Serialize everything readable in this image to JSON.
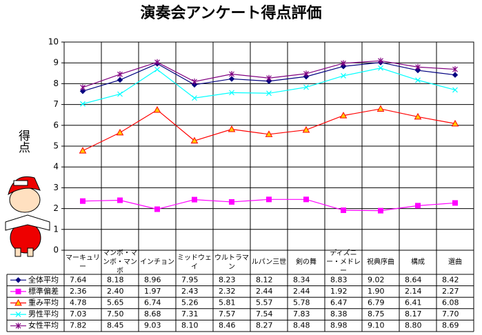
{
  "chart_data": {
    "type": "line",
    "title": "演奏会アンケート得点評価",
    "y_label": "得点",
    "categories": [
      "マーキュリー",
      "マンボ・マンボ・マンボ",
      "インチョン",
      "ミッドウェイ",
      "ウルトラマン",
      "ルパン三世",
      "剣の舞",
      "ディズニー・メドレー",
      "祝典序曲",
      "構成",
      "選曲"
    ],
    "ylim": [
      0,
      10
    ],
    "yticks": [
      0,
      1,
      2,
      3,
      4,
      5,
      6,
      7,
      8,
      9,
      10
    ],
    "grid": true,
    "series": [
      {
        "name": "全体平均",
        "color": "#000080",
        "marker": "diamond",
        "values": [
          7.64,
          8.18,
          8.96,
          7.95,
          8.23,
          8.12,
          8.34,
          8.83,
          9.02,
          8.64,
          8.42
        ],
        "value_labels": [
          "7.64",
          "8.18",
          "8.96",
          "7.95",
          "8.23",
          "8.12",
          "8.34",
          "8.83",
          "9.02",
          "8.64",
          "8.42"
        ]
      },
      {
        "name": "標準偏差",
        "color": "#ff00ff",
        "marker": "square",
        "values": [
          2.36,
          2.4,
          1.97,
          2.43,
          2.32,
          2.44,
          2.44,
          1.92,
          1.9,
          2.14,
          2.27
        ],
        "value_labels": [
          "2.36",
          "2.40",
          "1.97",
          "2.43",
          "2.32",
          "2.44",
          "2.44",
          "1.92",
          "1.90",
          "2.14",
          "2.27"
        ]
      },
      {
        "name": "重み平均",
        "color": "#ff0000",
        "marker": "triangle",
        "values": [
          4.78,
          5.65,
          6.74,
          5.26,
          5.81,
          5.57,
          5.78,
          6.47,
          6.79,
          6.41,
          6.08
        ],
        "value_labels": [
          "4.78",
          "5.65",
          "6.74",
          "5.26",
          "5.81",
          "5.57",
          "5.78",
          "6.47",
          "6.79",
          "6.41",
          "6.08"
        ]
      },
      {
        "name": "男性平均",
        "color": "#00ffff",
        "marker": "x",
        "values": [
          7.03,
          7.5,
          8.68,
          7.31,
          7.57,
          7.54,
          7.83,
          8.38,
          8.75,
          8.17,
          7.7
        ],
        "value_labels": [
          "7.03",
          "7.50",
          "8.68",
          "7.31",
          "7.57",
          "7.54",
          "7.83",
          "8.38",
          "8.75",
          "8.17",
          "7.70"
        ]
      },
      {
        "name": "女性平均",
        "color": "#800080",
        "marker": "star",
        "values": [
          7.82,
          8.45,
          9.03,
          8.1,
          8.46,
          8.27,
          8.48,
          8.98,
          9.1,
          8.8,
          8.69
        ],
        "value_labels": [
          "7.82",
          "8.45",
          "9.03",
          "8.10",
          "8.46",
          "8.27",
          "8.48",
          "8.98",
          "9.10",
          "8.80",
          "8.69"
        ]
      }
    ]
  }
}
